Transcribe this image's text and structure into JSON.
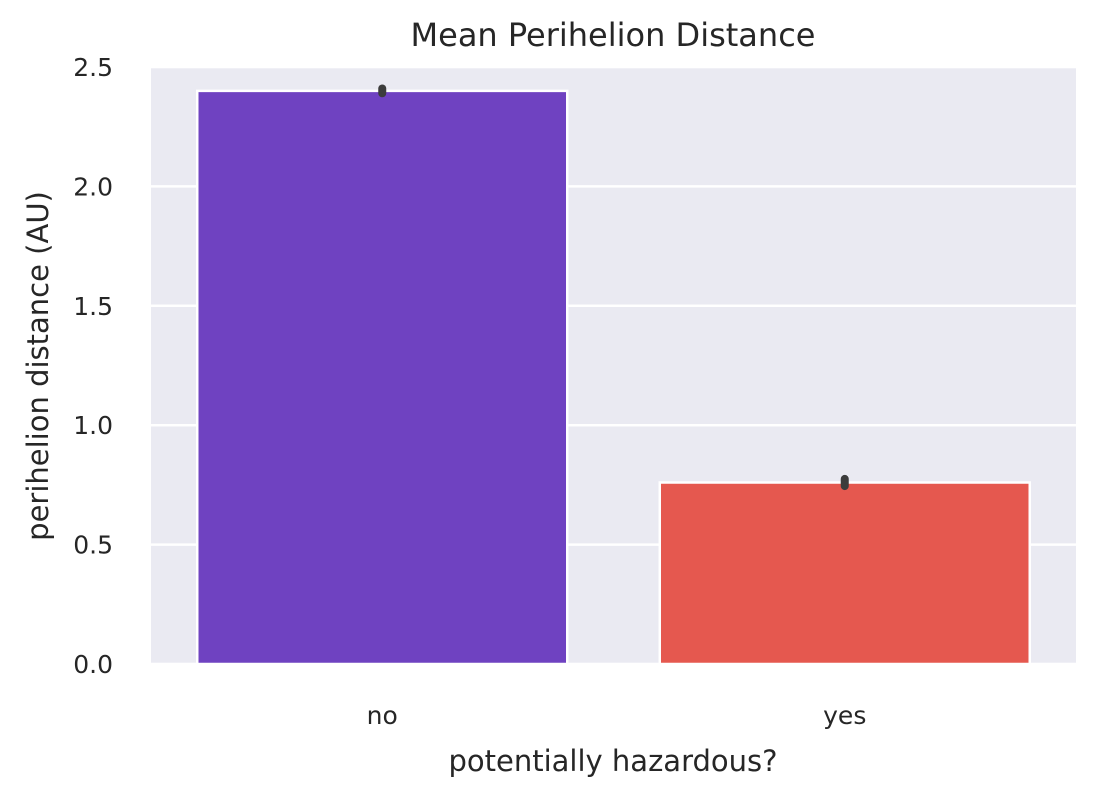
{
  "chart_data": {
    "type": "bar",
    "title": "Mean Perihelion Distance",
    "xlabel": "potentially hazardous?",
    "ylabel": "perihelion distance (AU)",
    "categories": [
      "no",
      "yes"
    ],
    "values": [
      2.4,
      0.76
    ],
    "error_bars": [
      {
        "low": 2.39,
        "high": 2.41
      },
      {
        "low": 0.745,
        "high": 0.775
      }
    ],
    "bar_colors": [
      "#6f42c1",
      "#e5584f"
    ],
    "error_bar_color": "#3c3c3c",
    "ylim": [
      0,
      2.5
    ],
    "yticks": [
      0.0,
      0.5,
      1.0,
      1.5,
      2.0,
      2.5
    ],
    "ytick_labels": [
      "0.0",
      "0.5",
      "1.0",
      "1.5",
      "2.0",
      "2.5"
    ],
    "grid": true,
    "background_color": "#eaeaf2",
    "grid_color": "#ffffff",
    "legend": "none"
  }
}
